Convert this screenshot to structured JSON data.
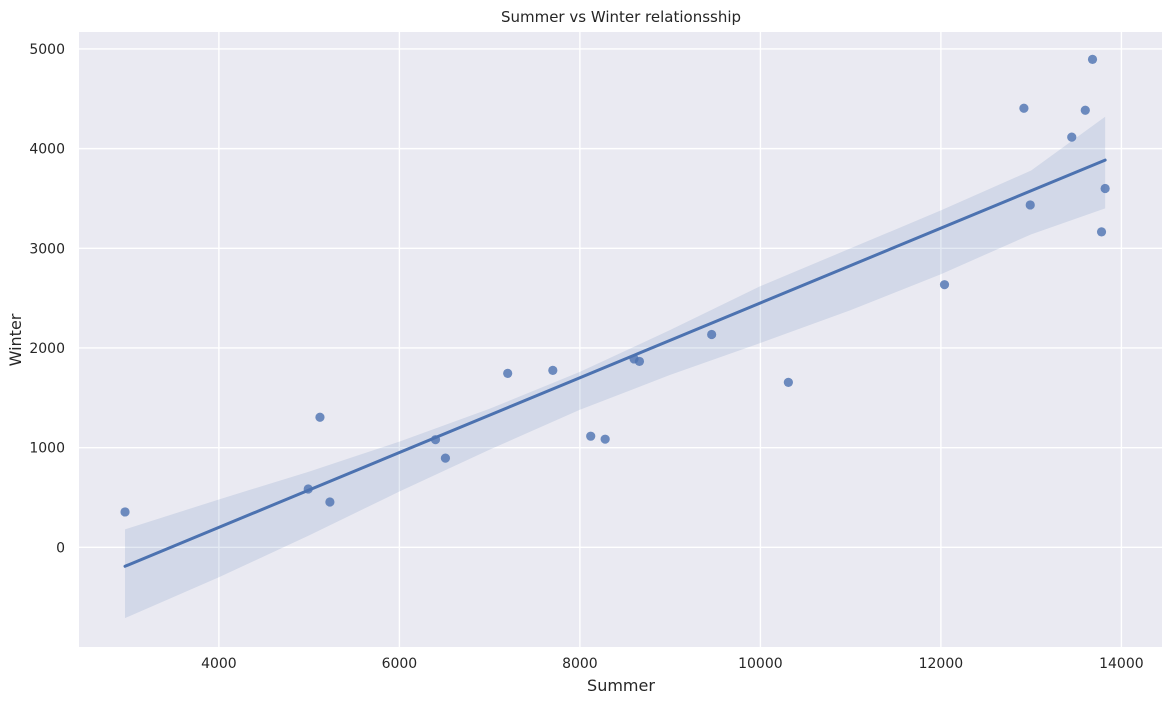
{
  "chart_data": {
    "type": "scatter",
    "title": "Summer vs Winter relationsship",
    "xlabel": "Summer",
    "ylabel": "Winter",
    "xlim": [
      2450,
      14450
    ],
    "ylim": [
      -1000,
      5170
    ],
    "xticks": [
      4000,
      6000,
      8000,
      10000,
      12000,
      14000
    ],
    "yticks": [
      0,
      1000,
      2000,
      3000,
      4000,
      5000
    ],
    "grid": true,
    "points": [
      {
        "x": 2960,
        "y": 355
      },
      {
        "x": 4990,
        "y": 585
      },
      {
        "x": 5120,
        "y": 1305
      },
      {
        "x": 5230,
        "y": 455
      },
      {
        "x": 6400,
        "y": 1080
      },
      {
        "x": 6510,
        "y": 895
      },
      {
        "x": 7200,
        "y": 1745
      },
      {
        "x": 7700,
        "y": 1775
      },
      {
        "x": 8120,
        "y": 1115
      },
      {
        "x": 8280,
        "y": 1085
      },
      {
        "x": 8600,
        "y": 1890
      },
      {
        "x": 8660,
        "y": 1865
      },
      {
        "x": 9460,
        "y": 2135
      },
      {
        "x": 10310,
        "y": 1655
      },
      {
        "x": 12040,
        "y": 2635
      },
      {
        "x": 12920,
        "y": 4405
      },
      {
        "x": 12990,
        "y": 3435
      },
      {
        "x": 13450,
        "y": 4115
      },
      {
        "x": 13600,
        "y": 4385
      },
      {
        "x": 13680,
        "y": 4895
      },
      {
        "x": 13780,
        "y": 3165
      },
      {
        "x": 13820,
        "y": 3600
      }
    ],
    "regression": {
      "x": [
        2960,
        13820
      ],
      "y": [
        -190,
        3885
      ]
    },
    "confidence_band": {
      "x": [
        2960,
        4000,
        5000,
        6000,
        7000,
        8000,
        9000,
        10000,
        11000,
        12000,
        13000,
        13820
      ],
      "upper": [
        180,
        480,
        760,
        1060,
        1390,
        1760,
        2180,
        2620,
        3000,
        3380,
        3780,
        4320
      ],
      "lower": [
        -710,
        -300,
        120,
        560,
        980,
        1380,
        1730,
        2050,
        2380,
        2740,
        3140,
        3400
      ]
    },
    "colors": {
      "background": "#eaeaf2",
      "grid": "#ffffff",
      "points": "#4c72b0",
      "line": "#4c72b0",
      "band": "#4c72b0"
    }
  }
}
